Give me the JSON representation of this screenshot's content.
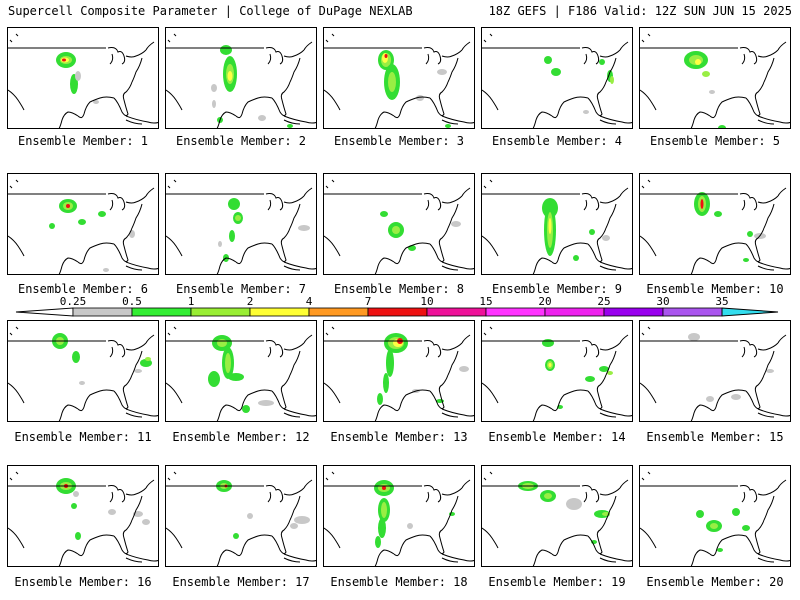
{
  "header": {
    "left": "Supercell Composite Parameter | College of DuPage NEXLAB",
    "right": "18Z GEFS | F186 Valid: 12Z SUN JUN 15 2025"
  },
  "member_label": "Ensemble Member: ",
  "members": [
    1,
    2,
    3,
    4,
    5,
    6,
    7,
    8,
    9,
    10,
    11,
    12,
    13,
    14,
    15,
    16,
    17,
    18,
    19,
    20
  ],
  "colorbar": {
    "ticks": [
      "0.25",
      "0.5",
      "1",
      "2",
      "4",
      "7",
      "10",
      "15",
      "20",
      "25",
      "30",
      "35"
    ],
    "colors": [
      "#c8c8c8",
      "#33ee33",
      "#99ee33",
      "#ffff33",
      "#ff9922",
      "#ee1111",
      "#ee1199",
      "#ff33ff",
      "#ee22ee",
      "#9900ee",
      "#aa55ee",
      "#33ddee"
    ]
  },
  "colors": {
    "gray": "#c8c8c8",
    "green": "#33dd33",
    "lightgreen": "#99ee44",
    "yellow": "#ffff44",
    "orange": "#ff9922",
    "red": "#ee1111",
    "outline": "#000000"
  }
}
